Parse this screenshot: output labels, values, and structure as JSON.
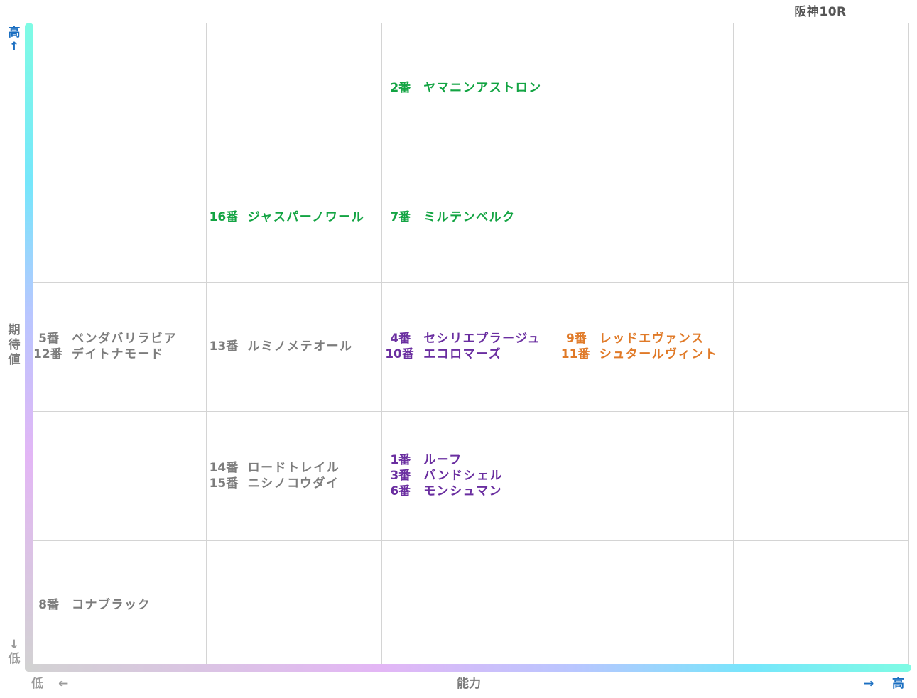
{
  "race_title": "阪神10R",
  "axes": {
    "y_high": "高",
    "y_high_arrow": "↑",
    "y_title": "期待値",
    "y_low_arrow": "↓",
    "y_low": "低",
    "x_low": "低",
    "x_low_arrow": "←",
    "x_title": "能力",
    "x_high_arrow": "→",
    "x_high": "高"
  },
  "colors": {
    "gray": "#7c7c7c",
    "green": "#13a443",
    "purple": "#6a2ea0",
    "orange": "#e07a28",
    "axis_high": "#1b6fc1"
  },
  "chart_data": {
    "type": "table",
    "title": "阪神10R",
    "xlabel": "能力",
    "ylabel": "期待値",
    "columns": 5,
    "rows": 5,
    "cells": [
      {
        "col": 3,
        "row": 1,
        "color": "green",
        "horses": [
          {
            "num": "2番",
            "name": "ヤマニンアストロン"
          }
        ]
      },
      {
        "col": 2,
        "row": 2,
        "color": "green",
        "horses": [
          {
            "num": "16番",
            "name": "ジャスパーノワール"
          }
        ]
      },
      {
        "col": 3,
        "row": 2,
        "color": "green",
        "horses": [
          {
            "num": "7番",
            "name": "ミルテンベルク"
          }
        ]
      },
      {
        "col": 1,
        "row": 3,
        "color": "gray",
        "horses": [
          {
            "num": "5番",
            "name": "ベンダバリラビア"
          },
          {
            "num": "12番",
            "name": "デイトナモード"
          }
        ]
      },
      {
        "col": 2,
        "row": 3,
        "color": "gray",
        "horses": [
          {
            "num": "13番",
            "name": "ルミノメテオール"
          }
        ]
      },
      {
        "col": 3,
        "row": 3,
        "color": "purple",
        "horses": [
          {
            "num": "4番",
            "name": "セシリエプラージュ"
          },
          {
            "num": "10番",
            "name": "エコロマーズ"
          }
        ]
      },
      {
        "col": 4,
        "row": 3,
        "color": "orange",
        "horses": [
          {
            "num": "9番",
            "name": "レッドエヴァンス"
          },
          {
            "num": "11番",
            "name": "シュタールヴィント"
          }
        ]
      },
      {
        "col": 2,
        "row": 4,
        "color": "gray",
        "horses": [
          {
            "num": "14番",
            "name": "ロードトレイル"
          },
          {
            "num": "15番",
            "name": "ニシノコウダイ"
          }
        ]
      },
      {
        "col": 3,
        "row": 4,
        "color": "purple",
        "horses": [
          {
            "num": "1番",
            "name": "ルーフ"
          },
          {
            "num": "3番",
            "name": "バンドシェル"
          },
          {
            "num": "6番",
            "name": "モンシュマン"
          }
        ]
      },
      {
        "col": 1,
        "row": 5,
        "color": "gray",
        "horses": [
          {
            "num": "8番",
            "name": "コナブラック"
          }
        ]
      }
    ]
  }
}
